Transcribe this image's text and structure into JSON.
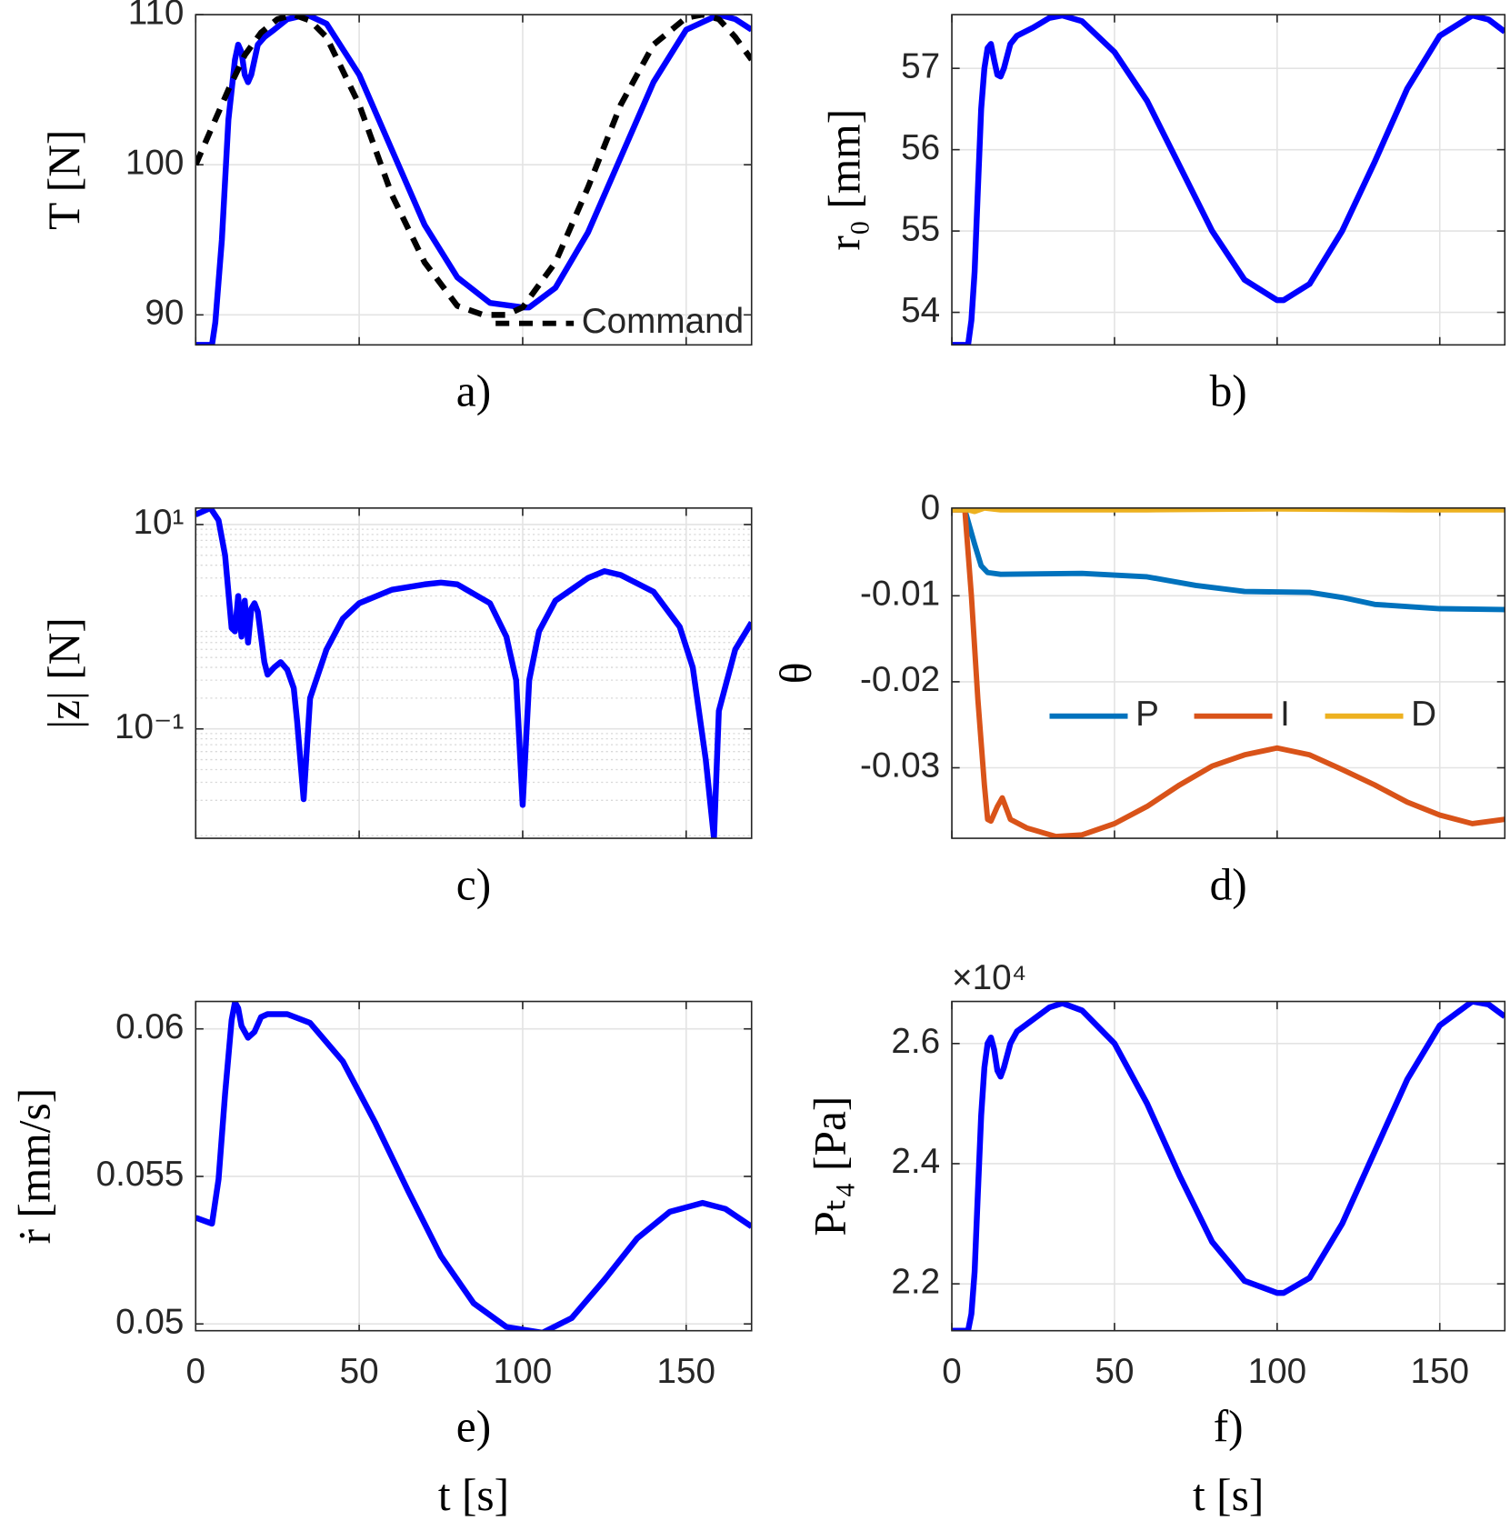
{
  "chart_data": [
    {
      "type": "line",
      "label": "a)",
      "ylabel": "T [N]",
      "xlim": [
        0,
        170
      ],
      "xticks": [
        0,
        50,
        100,
        150
      ],
      "xticklabels": false,
      "ylim": [
        88,
        110
      ],
      "yticks": [
        90,
        100,
        110
      ],
      "grid": true,
      "legend": "lower right",
      "series": [
        {
          "color": "#0000ff",
          "dash": false,
          "x": [
            0,
            5,
            6,
            8,
            10,
            12,
            13,
            14,
            15,
            16,
            17,
            19,
            21,
            24,
            28,
            34,
            40,
            50,
            60,
            70,
            80,
            90,
            100,
            102,
            110,
            120,
            130,
            140,
            150,
            160,
            165,
            170
          ],
          "values": [
            88,
            88,
            89.5,
            95,
            103,
            107,
            108,
            107.5,
            106,
            105.5,
            106,
            108,
            108.5,
            109,
            109.7,
            110,
            109.4,
            106,
            101,
            96,
            92.5,
            90.8,
            90.5,
            90.5,
            91.8,
            95.5,
            100.5,
            105.5,
            109,
            110,
            109.7,
            109
          ]
        },
        {
          "name": "Command",
          "color": "#000000",
          "dash": true,
          "x": [
            0,
            5,
            10,
            15,
            20,
            25,
            30,
            35,
            40,
            50,
            60,
            70,
            80,
            88,
            95,
            100,
            110,
            120,
            130,
            140,
            150,
            155,
            160,
            165,
            170
          ],
          "values": [
            100,
            102.5,
            105,
            107.3,
            108.8,
            109.7,
            110,
            109.6,
            108.5,
            104,
            98,
            93.5,
            90.6,
            90,
            90,
            90.5,
            93.5,
            98.5,
            104,
            108,
            109.8,
            110,
            109.7,
            108.5,
            107
          ]
        }
      ]
    },
    {
      "type": "line",
      "label": "b)",
      "ylabel": "r₀ [mm]",
      "xlim": [
        0,
        170
      ],
      "xticks": [
        0,
        50,
        100,
        150
      ],
      "xticklabels": false,
      "ylim": [
        53.6,
        57.66
      ],
      "yticks": [
        54,
        55,
        56,
        57
      ],
      "grid": true,
      "series": [
        {
          "color": "#0000ff",
          "dash": false,
          "x": [
            0,
            5,
            6,
            7,
            8,
            9,
            10,
            11,
            12,
            13,
            14,
            15,
            16,
            18,
            20,
            25,
            30,
            34,
            40,
            50,
            60,
            70,
            80,
            90,
            100,
            102,
            110,
            120,
            130,
            140,
            150,
            160,
            165,
            170
          ],
          "values": [
            53.6,
            53.6,
            53.9,
            54.5,
            55.5,
            56.5,
            57,
            57.25,
            57.3,
            57.1,
            56.92,
            56.9,
            57,
            57.3,
            57.4,
            57.5,
            57.62,
            57.65,
            57.58,
            57.2,
            56.6,
            55.8,
            55,
            54.4,
            54.15,
            54.15,
            54.35,
            55,
            55.85,
            56.75,
            57.4,
            57.65,
            57.6,
            57.45
          ]
        }
      ]
    },
    {
      "type": "line",
      "label": "c)",
      "ylabel": "|z| [N]",
      "xlim": [
        0,
        170
      ],
      "xticks": [
        0,
        50,
        100,
        150
      ],
      "xticklabels": false,
      "ylim": [
        0.0085,
        14.5
      ],
      "ylog": true,
      "yticks": [
        {
          "value": 0.1,
          "label": "10⁻¹"
        },
        {
          "value": 10,
          "label": "10¹"
        }
      ],
      "grid": true,
      "minor_grid": true,
      "series": [
        {
          "color": "#0000ff",
          "dash": false,
          "x": [
            0,
            4.5,
            7,
            9,
            11,
            12,
            13,
            14,
            15,
            16,
            17,
            18,
            19,
            20,
            21,
            22,
            24,
            26,
            28,
            30,
            31,
            33,
            35,
            40,
            45,
            50,
            60,
            70,
            75,
            80,
            90,
            95,
            98,
            100,
            102,
            105,
            110,
            120,
            125,
            130,
            140,
            148,
            152,
            156,
            158.5,
            160,
            165,
            170
          ],
          "values": [
            12.5,
            14.5,
            11,
            5,
            0.97,
            0.9,
            2,
            0.8,
            1.8,
            0.7,
            1.5,
            1.7,
            1.4,
            0.8,
            0.45,
            0.34,
            0.4,
            0.45,
            0.38,
            0.25,
            0.12,
            0.0205,
            0.2,
            0.6,
            1.2,
            1.7,
            2.3,
            2.6,
            2.7,
            2.6,
            1.7,
            0.8,
            0.3,
            0.018,
            0.3,
            0.9,
            1.8,
            3,
            3.5,
            3.2,
            2.2,
            1,
            0.4,
            0.05,
            0.0085,
            0.15,
            0.6,
            1.1
          ]
        }
      ]
    },
    {
      "type": "line",
      "label": "d)",
      "ylabel": "θ",
      "xlim": [
        0,
        170
      ],
      "xticks": [
        0,
        50,
        100,
        150
      ],
      "xticklabels": false,
      "ylim": [
        -0.0382,
        0.0002
      ],
      "yticks": [
        -0.03,
        -0.02,
        -0.01,
        0
      ],
      "grid": true,
      "legend": "center",
      "series": [
        {
          "name": "P",
          "color": "#0072bd",
          "dash": false,
          "x": [
            0,
            4,
            7,
            9,
            11,
            15,
            40,
            60,
            75,
            90,
            110,
            120,
            130,
            150,
            170
          ],
          "values": [
            0,
            0,
            -0.004,
            -0.0065,
            -0.0073,
            -0.0075,
            -0.0074,
            -0.0078,
            -0.0088,
            -0.0095,
            -0.0096,
            -0.0102,
            -0.011,
            -0.0115,
            -0.0116
          ]
        },
        {
          "name": "I",
          "color": "#d95319",
          "dash": false,
          "x": [
            0,
            4,
            6,
            8,
            10,
            11,
            12,
            14,
            15.5,
            17,
            18,
            23,
            32,
            40,
            50,
            60,
            70,
            80,
            90,
            100,
            110,
            120,
            130,
            140,
            150,
            160,
            170
          ],
          "values": [
            0,
            0,
            -0.01,
            -0.022,
            -0.032,
            -0.036,
            -0.0362,
            -0.0345,
            -0.0335,
            -0.035,
            -0.036,
            -0.037,
            -0.038,
            -0.0378,
            -0.0365,
            -0.0345,
            -0.032,
            -0.0298,
            -0.0285,
            -0.0277,
            -0.0285,
            -0.0302,
            -0.032,
            -0.034,
            -0.0355,
            -0.0365,
            -0.036
          ]
        },
        {
          "name": "D",
          "color": "#edb120",
          "dash": false,
          "x": [
            0,
            5,
            7,
            10,
            15,
            60,
            100,
            140,
            170
          ],
          "values": [
            0,
            0,
            -0.0002,
            0.0002,
            0,
            0,
            0.0001,
            0,
            0
          ]
        }
      ]
    },
    {
      "type": "line",
      "label": "e)",
      "ylabel": "ṙ [mm/s]",
      "xlabel": "t [s]",
      "xlim": [
        0,
        170
      ],
      "xticks": [
        0,
        50,
        100,
        150
      ],
      "xticklabels": true,
      "ylim": [
        0.04977,
        0.06093
      ],
      "yticks": [
        0.05,
        0.055,
        0.06
      ],
      "grid": true,
      "series": [
        {
          "color": "#0000ff",
          "dash": false,
          "x": [
            0,
            5,
            7,
            9,
            11,
            12,
            13,
            14,
            16,
            18,
            20,
            22,
            28,
            35,
            45,
            55,
            65,
            75,
            85,
            95,
            106,
            115,
            125,
            135,
            145,
            155,
            162,
            170
          ],
          "values": [
            0.0536,
            0.0534,
            0.0549,
            0.0578,
            0.0603,
            0.0609,
            0.0607,
            0.0601,
            0.0597,
            0.0599,
            0.0604,
            0.0605,
            0.0605,
            0.0602,
            0.0589,
            0.0568,
            0.0545,
            0.0523,
            0.0507,
            0.0499,
            0.0497,
            0.0502,
            0.0515,
            0.0529,
            0.0538,
            0.0541,
            0.0539,
            0.0533
          ]
        }
      ]
    },
    {
      "type": "line",
      "label": "f)",
      "ylabel": "Pₜ₄ [Pa]",
      "xlabel": "t [s]",
      "multiplier": "×10⁴",
      "xlim": [
        0,
        170
      ],
      "xticks": [
        0,
        50,
        100,
        150
      ],
      "xticklabels": true,
      "ylim": [
        2.122,
        2.67
      ],
      "yticks": [
        2.2,
        2.4,
        2.6
      ],
      "grid": true,
      "series": [
        {
          "color": "#0000ff",
          "dash": false,
          "x": [
            0,
            5,
            6,
            7,
            8,
            9,
            10,
            11,
            12,
            13,
            14,
            15,
            16,
            18,
            20,
            25,
            30,
            34,
            40,
            50,
            60,
            70,
            80,
            90,
            100,
            102,
            110,
            120,
            130,
            140,
            150,
            160,
            165,
            170
          ],
          "values": [
            2.122,
            2.122,
            2.15,
            2.22,
            2.35,
            2.48,
            2.56,
            2.6,
            2.61,
            2.59,
            2.555,
            2.545,
            2.56,
            2.6,
            2.62,
            2.64,
            2.66,
            2.667,
            2.655,
            2.6,
            2.5,
            2.38,
            2.27,
            2.205,
            2.185,
            2.185,
            2.21,
            2.3,
            2.42,
            2.54,
            2.63,
            2.67,
            2.665,
            2.645
          ]
        }
      ]
    }
  ]
}
